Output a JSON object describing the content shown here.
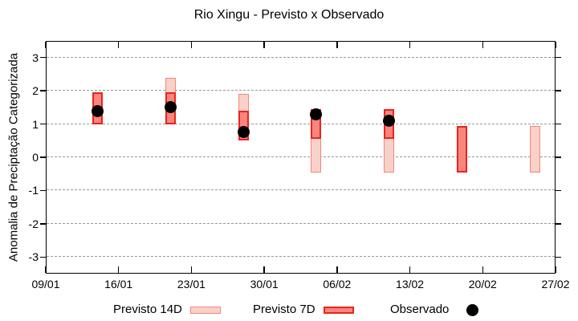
{
  "title": "Rio Xingu - Previsto x Observado",
  "chart_data": {
    "type": "bar",
    "subtype": "range-bars-with-observed-points",
    "title": "Rio Xingu - Previsto x Observado",
    "xlabel": "",
    "ylabel": "Anomalia de Preciptação Categorizada",
    "ylim": [
      -3.5,
      3.5
    ],
    "yticks": [
      3,
      2,
      1,
      0,
      -1,
      -2,
      -3
    ],
    "xtick_labels": [
      "09/01",
      "16/01",
      "23/01",
      "30/01",
      "06/02",
      "13/02",
      "20/02",
      "27/02"
    ],
    "xtick_interval_days": 7,
    "x_axis_span_days": 49,
    "grid": "horizontal-dashed",
    "grid_color": "#999999",
    "legend_position": "below-plot",
    "background": "#ffffff",
    "border_color": "#000000",
    "series": [
      {
        "name": "Previsto 14D",
        "type": "range-bar",
        "fill": "#f9d1c8",
        "stroke": "#f0897b"
      },
      {
        "name": "Previsto 7D",
        "type": "range-bar",
        "fill": "#fa857d",
        "stroke": "#e8241c"
      },
      {
        "name": "Observado",
        "type": "point",
        "color": "#000000"
      }
    ],
    "points": [
      {
        "date": "14/01",
        "day": 5,
        "previsto_14d": null,
        "previsto_7d": [
          1.0,
          1.95
        ],
        "observado": 1.4
      },
      {
        "date": "21/01",
        "day": 12,
        "previsto_14d": [
          1.0,
          2.4
        ],
        "previsto_7d": [
          1.0,
          1.95
        ],
        "observado": 1.5
      },
      {
        "date": "28/01",
        "day": 19,
        "previsto_14d": [
          0.5,
          1.9
        ],
        "previsto_7d": [
          0.5,
          1.4
        ],
        "observado": 0.75
      },
      {
        "date": "04/02",
        "day": 26,
        "previsto_14d": [
          -0.45,
          1.45
        ],
        "previsto_7d": [
          0.55,
          1.45
        ],
        "observado": 1.3
      },
      {
        "date": "11/02",
        "day": 33,
        "previsto_14d": [
          -0.45,
          1.45
        ],
        "previsto_7d": [
          0.55,
          1.45
        ],
        "observado": 1.1
      },
      {
        "date": "18/02",
        "day": 40,
        "previsto_14d": null,
        "previsto_7d": [
          -0.45,
          0.95
        ],
        "observado": null
      },
      {
        "date": "25/02",
        "day": 47,
        "previsto_14d": [
          -0.45,
          0.95
        ],
        "previsto_7d": null,
        "observado": null
      }
    ]
  }
}
